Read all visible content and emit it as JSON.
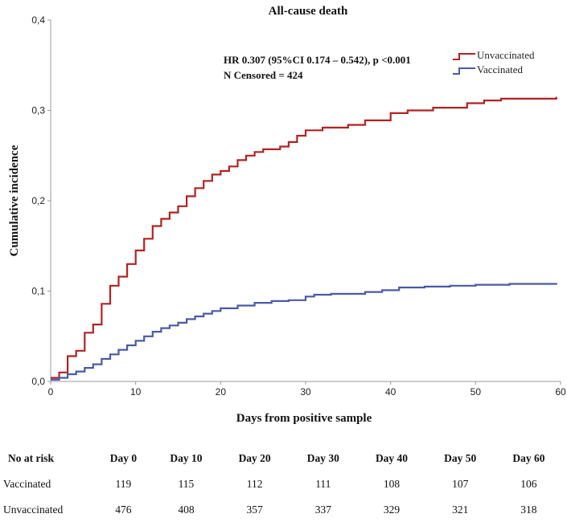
{
  "chart_data": {
    "type": "line",
    "title": "All-cause death",
    "xlabel": "Days from positive sample",
    "ylabel": "Cumulative incidence",
    "xlim": [
      0,
      60
    ],
    "ylim": [
      0,
      0.4
    ],
    "x_ticks": [
      0,
      10,
      20,
      30,
      40,
      50,
      60
    ],
    "x_tick_labels": [
      "0",
      "10",
      "20",
      "30",
      "40",
      "50",
      "60"
    ],
    "y_ticks": [
      0,
      0.1,
      0.2,
      0.3,
      0.4
    ],
    "y_tick_labels": [
      "0,0",
      "0,1",
      "0,2",
      "0,3",
      "0,4"
    ],
    "annotation_lines": [
      "HR 0.307 (95%CI 0.174 – 0.542), p <0.001",
      "N Censored =  424"
    ],
    "legend_position": "top-right",
    "series": [
      {
        "name": "Unvaccinated",
        "color": "#b22222",
        "x": [
          0,
          1,
          2,
          3,
          4,
          5,
          6,
          7,
          8,
          9,
          10,
          11,
          12,
          13,
          14,
          15,
          16,
          17,
          18,
          19,
          20,
          21,
          22,
          23,
          24,
          25,
          27,
          28,
          29,
          30,
          32,
          34,
          35,
          37,
          40,
          42,
          45,
          49,
          51,
          53,
          59.5
        ],
        "values": [
          0.004,
          0.01,
          0.028,
          0.034,
          0.054,
          0.063,
          0.086,
          0.106,
          0.116,
          0.13,
          0.145,
          0.158,
          0.172,
          0.18,
          0.187,
          0.194,
          0.205,
          0.214,
          0.222,
          0.229,
          0.233,
          0.238,
          0.245,
          0.25,
          0.254,
          0.257,
          0.26,
          0.265,
          0.272,
          0.278,
          0.281,
          0.281,
          0.284,
          0.289,
          0.297,
          0.3,
          0.303,
          0.308,
          0.311,
          0.313,
          0.315
        ]
      },
      {
        "name": "Vaccinated",
        "color": "#4a5aa8",
        "x": [
          0,
          1,
          2,
          3,
          4,
          5,
          6,
          7,
          8,
          9,
          10,
          11,
          12,
          13,
          14,
          15,
          16,
          17,
          18,
          19,
          20,
          22,
          24,
          26,
          28,
          30,
          31,
          33,
          37,
          39,
          41,
          44,
          47,
          50,
          54,
          59.5
        ],
        "values": [
          0.002,
          0.004,
          0.008,
          0.011,
          0.015,
          0.019,
          0.025,
          0.03,
          0.035,
          0.04,
          0.045,
          0.05,
          0.055,
          0.059,
          0.062,
          0.065,
          0.069,
          0.072,
          0.075,
          0.078,
          0.081,
          0.084,
          0.087,
          0.089,
          0.09,
          0.094,
          0.096,
          0.097,
          0.099,
          0.101,
          0.104,
          0.105,
          0.106,
          0.107,
          0.108,
          0.109
        ]
      }
    ]
  },
  "risk_table": {
    "header_label": "No at risk",
    "days": [
      "Day 0",
      "Day 10",
      "Day 20",
      "Day 30",
      "Day 40",
      "Day 50",
      "Day 60"
    ],
    "rows": [
      {
        "label": "Vaccinated",
        "values": [
          "119",
          "115",
          "112",
          "111",
          "108",
          "107",
          "106"
        ]
      },
      {
        "label": "Unvaccinated",
        "values": [
          "476",
          "408",
          "357",
          "337",
          "329",
          "321",
          "318"
        ]
      }
    ]
  }
}
